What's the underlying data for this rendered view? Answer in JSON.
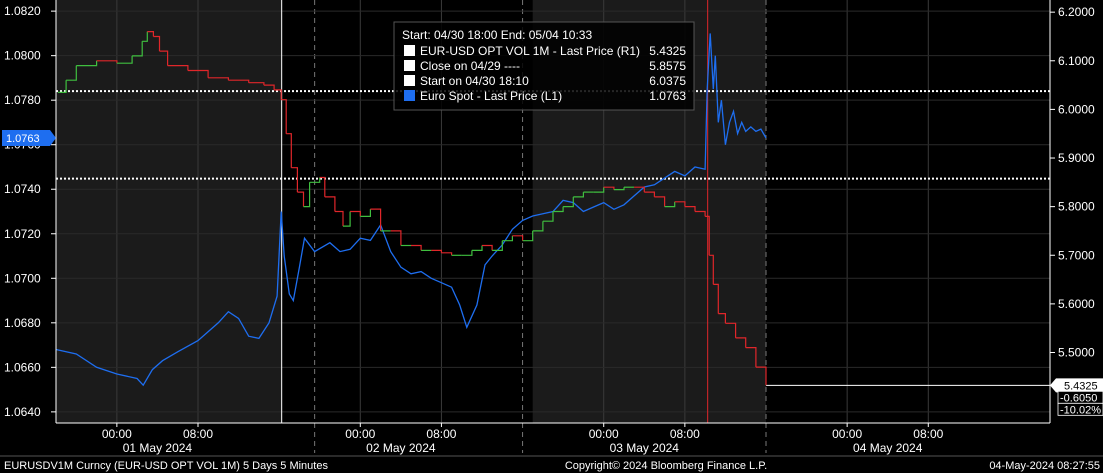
{
  "chart_data": {
    "type": "line",
    "legend": {
      "header": "Start: 04/30 18:00 End: 05/04 10:33",
      "placement": "top-center",
      "entries": [
        {
          "label": "EUR-USD OPT VOL 1M - Last Price (R1)",
          "value": "5.4325",
          "color": "#ffffff"
        },
        {
          "label": "Close on 04/29 ----",
          "value": "5.8575",
          "color": "#ffffff"
        },
        {
          "label": "Start on 04/30 18:10",
          "value": "6.0375",
          "color": "#ffffff"
        },
        {
          "label": "Euro Spot - Last Price (L1)",
          "value": "1.0763",
          "color": "#1e6ef0"
        }
      ]
    },
    "left_axis": {
      "ylim": [
        1.0635,
        1.0825
      ],
      "ticks": [
        "1.0640",
        "1.0660",
        "1.0680",
        "1.0700",
        "1.0720",
        "1.0740",
        "1.0760",
        "1.0780",
        "1.0800",
        "1.0820"
      ]
    },
    "right_axis": {
      "ylim": [
        5.355,
        6.225
      ],
      "ticks": [
        "5.5000",
        "5.6000",
        "5.7000",
        "5.8000",
        "5.9000",
        "6.0000",
        "6.1000",
        "6.2000"
      ]
    },
    "x_axis": {
      "time_ticks": [
        {
          "t": 6,
          "label": "00:00"
        },
        {
          "t": 14,
          "label": "08:00"
        },
        {
          "t": 30,
          "label": "00:00"
        },
        {
          "t": 38,
          "label": "08:00"
        },
        {
          "t": 54,
          "label": "00:00"
        },
        {
          "t": 62,
          "label": "08:00"
        },
        {
          "t": 78,
          "label": "00:00"
        },
        {
          "t": 86,
          "label": "08:00"
        }
      ],
      "date_labels": [
        {
          "t": 10,
          "label": "01 May 2024"
        },
        {
          "t": 34,
          "label": "02 May 2024"
        },
        {
          "t": 58,
          "label": "03 May 2024"
        },
        {
          "t": 82,
          "label": "04 May 2024"
        }
      ]
    },
    "current_left_badge": "1.0763",
    "right_badges": [
      {
        "text": "5.4325",
        "color": "#ffffff"
      },
      {
        "text": "-0.6050",
        "color": "#ffffff"
      },
      {
        "text": "-10.02%",
        "color": "#ffffff"
      }
    ],
    "reference_lines": [
      {
        "axis": "right",
        "value": 6.0375,
        "label": "Start on 04/30 18:10"
      },
      {
        "axis": "right",
        "value": 5.8575,
        "label": "Close on 04/29"
      }
    ],
    "events": [
      {
        "t": 22.25,
        "color": "#ffffff"
      },
      {
        "t": 64.25,
        "color": "#e0262a"
      }
    ],
    "series": [
      {
        "name": "Euro Spot - Last Price (L1)",
        "axis": "left",
        "color": "#1e6ef0",
        "x": [
          0,
          2,
          4,
          6,
          8,
          8.6,
          9.5,
          10.5,
          12,
          14,
          16,
          17,
          18,
          19,
          20,
          21,
          21.8,
          22.2,
          22.5,
          23.0,
          23.4,
          24.0,
          24.5,
          25.5,
          27,
          28,
          29,
          30,
          31,
          32,
          33,
          34,
          35,
          36,
          37,
          38,
          39,
          39.8,
          40.5,
          41.5,
          42.3,
          43,
          44,
          45,
          46,
          47,
          48,
          49,
          50,
          51,
          52,
          53,
          54,
          55,
          56,
          57,
          58,
          59,
          60,
          61,
          62,
          63,
          64,
          64.2,
          64.5,
          64.8,
          65,
          65.3,
          65.6,
          66,
          66.4,
          66.8,
          67.2,
          67.6,
          68,
          68.5,
          69,
          69.5,
          70
        ],
        "y": [
          1.0668,
          1.0666,
          1.066,
          1.0657,
          1.0655,
          1.0652,
          1.0659,
          1.0663,
          1.0667,
          1.0672,
          1.068,
          1.0685,
          1.0682,
          1.0674,
          1.0673,
          1.068,
          1.0692,
          1.073,
          1.071,
          1.0693,
          1.069,
          1.0705,
          1.0718,
          1.0712,
          1.0716,
          1.0712,
          1.0713,
          1.0718,
          1.0717,
          1.0724,
          1.0712,
          1.0705,
          1.0702,
          1.0703,
          1.07,
          1.0698,
          1.0696,
          1.0688,
          1.0678,
          1.0688,
          1.0706,
          1.071,
          1.0715,
          1.0722,
          1.0726,
          1.0728,
          1.0729,
          1.073,
          1.0735,
          1.0734,
          1.073,
          1.0732,
          1.0734,
          1.0731,
          1.0733,
          1.0737,
          1.0741,
          1.0742,
          1.0745,
          1.0748,
          1.0746,
          1.075,
          1.0749,
          1.0785,
          1.081,
          1.0785,
          1.08,
          1.077,
          1.078,
          1.076,
          1.077,
          1.0775,
          1.0765,
          1.077,
          1.0766,
          1.0768,
          1.0766,
          1.0767,
          1.0763
        ]
      },
      {
        "name": "EUR-USD OPT VOL 1M - Last Price (R1)",
        "axis": "right",
        "color": "#3fbf3f",
        "drop_color": "#e0262a",
        "x": [
          0.2,
          1,
          2,
          4,
          6,
          7.5,
          8.5,
          9,
          9.6,
          10.2,
          11,
          13,
          15,
          17,
          19,
          20.5,
          21.5,
          22.2,
          22.7,
          23.2,
          23.8,
          24.4,
          25,
          26,
          26.5,
          27.5,
          28.3,
          29,
          30,
          31,
          32,
          33,
          34,
          35,
          36,
          37,
          38,
          39,
          40,
          41,
          42,
          43,
          44,
          45,
          46,
          47,
          48,
          49,
          50,
          51,
          52,
          53,
          54,
          55,
          56,
          57,
          58,
          59,
          60,
          61,
          62,
          63,
          64,
          64.4,
          64.8,
          65.3,
          66,
          67,
          68,
          69,
          70
        ],
        "y": [
          6.035,
          6.06,
          6.09,
          6.1,
          6.095,
          6.11,
          6.14,
          6.16,
          6.15,
          6.12,
          6.09,
          6.08,
          6.065,
          6.06,
          6.055,
          6.05,
          6.04,
          6.02,
          5.95,
          5.88,
          5.83,
          5.8,
          5.85,
          5.86,
          5.82,
          5.79,
          5.76,
          5.79,
          5.78,
          5.795,
          5.75,
          5.75,
          5.72,
          5.72,
          5.71,
          5.71,
          5.705,
          5.7,
          5.7,
          5.71,
          5.72,
          5.71,
          5.73,
          5.74,
          5.73,
          5.75,
          5.77,
          5.79,
          5.8,
          5.82,
          5.83,
          5.83,
          5.84,
          5.835,
          5.84,
          5.84,
          5.83,
          5.82,
          5.8,
          5.81,
          5.8,
          5.79,
          5.78,
          5.7,
          5.64,
          5.58,
          5.56,
          5.53,
          5.51,
          5.47,
          5.4325
        ]
      }
    ]
  },
  "footer": {
    "ticker": "EURUSDV1M Curncy (EUR-USD OPT VOL 1M) 5 Days 5 Minutes",
    "copyright": "Copyright© 2024 Bloomberg Finance L.P.",
    "timestamp": "04-May-2024 08:27:55"
  }
}
